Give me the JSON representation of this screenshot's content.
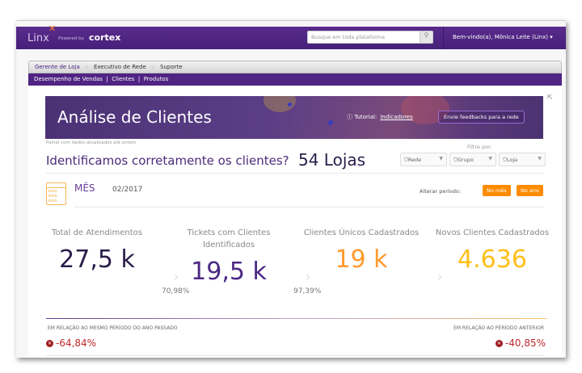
{
  "header": {
    "logo": "Linx",
    "powered_by": "Powered by",
    "brand": "cortex",
    "search_placeholder": "Busque em toda plataforma",
    "user": "Bem-vindo(a), Mônica Leite (Linx)",
    "user_caret": "▾"
  },
  "tabs": [
    {
      "label": "Gerente de Loja",
      "active": true
    },
    {
      "label": "Executivo de Rede"
    },
    {
      "label": "Suporte"
    }
  ],
  "tab_separator": "::",
  "subnav": [
    "Desempenho de Vendas",
    "Clientes",
    "Produtos"
  ],
  "banner": {
    "title": "Análise de Clientes",
    "tutorial_label": "Tutorial:",
    "tutorial_link": "Indicadores",
    "feedback": "Envie feedbacks para a rede"
  },
  "updated": "Painel com dados atualizados até ontem",
  "question": "Identificamos corretamente os clientes?",
  "stores": "54 Lojas",
  "filter": {
    "label": "Filtre por:",
    "buttons": [
      "Rede",
      "Grupo",
      "Loja"
    ]
  },
  "period": {
    "label": "MÊS",
    "value": "02/2017",
    "change_label": "Alterar período:",
    "buttons": [
      "No mês",
      "No ano"
    ]
  },
  "kpis": [
    {
      "label": "Total de Atendimentos",
      "value": "27,5 k",
      "color": "#2a1d4a"
    },
    {
      "label": "Tickets com Clientes Identificados",
      "value": "19,5 k",
      "color": "#4b2885"
    },
    {
      "label": "Clientes Únicos Cadastrados",
      "value": "19 k",
      "color": "#ff9a2e"
    },
    {
      "label": "Novos Clientes Cadastrados",
      "value": "4.636",
      "color": "#ffbf1a"
    }
  ],
  "conversions": [
    "70,98%",
    "97,39%"
  ],
  "comparisons": {
    "year": {
      "label": "EM RELAÇÃO AO MESMO PERÍODO DO ANO PASSADO",
      "value": "-64,84%"
    },
    "previous": {
      "label": "EM RELAÇÃO AO PERÍODO ANTERIOR",
      "value": "-40,85%"
    }
  },
  "colors": {
    "brand_purple": "#4f2483",
    "accent_orange": "#ff8c00",
    "negative": "#c0282d"
  }
}
